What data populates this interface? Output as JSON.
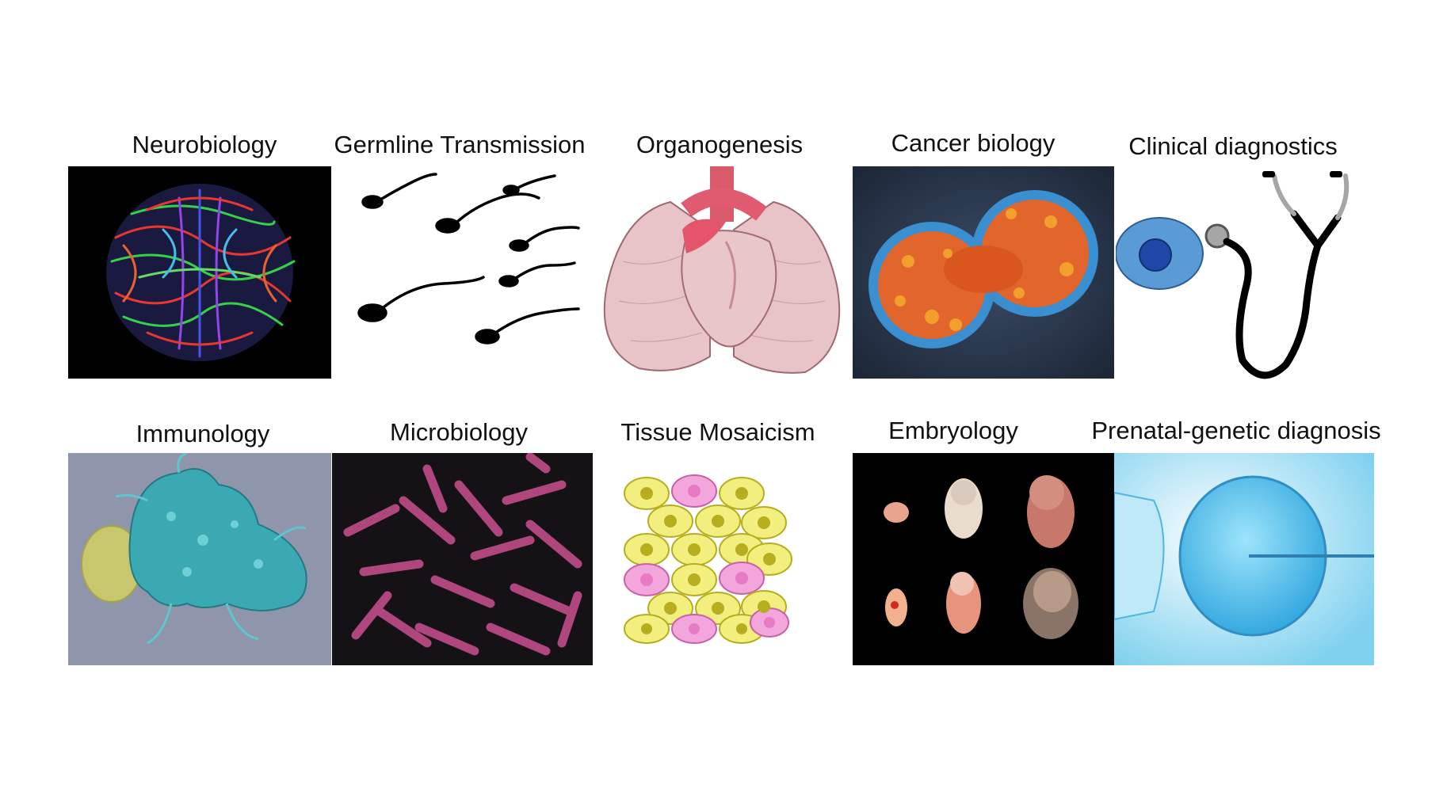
{
  "panels": [
    {
      "label": "Neurobiology",
      "image_icon": "brain-tractography-icon"
    },
    {
      "label": "Germline Transmission",
      "image_icon": "sperm-cells-icon"
    },
    {
      "label": "Organogenesis",
      "image_icon": "heart-lungs-icon"
    },
    {
      "label": "Cancer biology",
      "image_icon": "dividing-cancer-cell-icon"
    },
    {
      "label": "Clinical diagnostics",
      "image_icon": "stethoscope-icon"
    },
    {
      "label": "Immunology",
      "image_icon": "immune-cell-icon"
    },
    {
      "label": "Microbiology",
      "image_icon": "bacteria-icon"
    },
    {
      "label": "Tissue Mosaicism",
      "image_icon": "mosaic-cells-icon"
    },
    {
      "label": "Embryology",
      "image_icon": "embryos-icon"
    },
    {
      "label": "Prenatal-genetic diagnosis",
      "image_icon": "oocyte-injection-icon"
    }
  ],
  "colors": {
    "text": "#111111",
    "panel_black": "#000000",
    "cell_yellow": "#f3ef7e",
    "cell_pink": "#f2a6dc",
    "cell_blue": "#5b9bd5",
    "bacteria_magenta": "#b0467e",
    "immune_teal": "#3aa9b3"
  }
}
